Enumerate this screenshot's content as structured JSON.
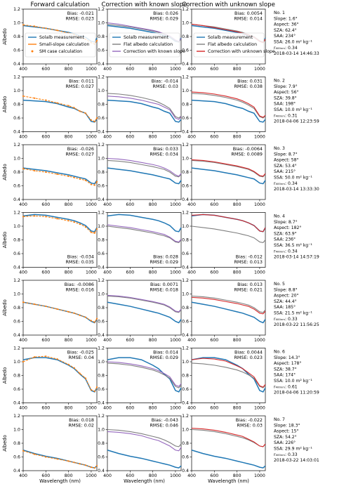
{
  "column_titles": [
    "Forward calculation",
    "Correction with known slope",
    "Correction with unknown slope"
  ],
  "axis": {
    "ylabel": "Albedo",
    "xlabel": "Wavelength (nm)",
    "xticks": [
      "400",
      "600",
      "800",
      "1000"
    ],
    "yticks": [
      "0.4",
      "0.6",
      "0.8",
      "1.0",
      "1.2"
    ]
  },
  "legends": [
    {
      "column": 0,
      "entries": [
        {
          "label": "Solalb measurement",
          "color": "#1f77b4",
          "style": "line"
        },
        {
          "label": "Small-slope calculation",
          "color": "#ff7f0e",
          "style": "line"
        },
        {
          "label": "SM case calculation",
          "color": "#ff7f0e",
          "style": "marker"
        }
      ]
    },
    {
      "column": 1,
      "entries": [
        {
          "label": "Solalb measurement",
          "color": "#1f77b4",
          "style": "line"
        },
        {
          "label": "Flat albedo calculation",
          "color": "#7f7f7f",
          "style": "line"
        },
        {
          "label": "Correction with known slope",
          "color": "#9467bd",
          "style": "line"
        }
      ]
    },
    {
      "column": 2,
      "entries": [
        {
          "label": "Solalb measurement",
          "color": "#1f77b4",
          "style": "line"
        },
        {
          "label": "Flat albedo calculation",
          "color": "#7f7f7f",
          "style": "line"
        },
        {
          "label": "Correction with unknown slope",
          "color": "#d62728",
          "style": "line"
        }
      ]
    }
  ],
  "cases": [
    {
      "info": [
        "No. 1",
        "Slope: 1.6°",
        "Aspect: 36°",
        "SZA: 62.4°",
        "SAA: 234°",
        "SSA: 26.0 m² kg⁻¹",
        "r₄₀₀ₙₘ: 0.34",
        "2018-03-14 14:46:33"
      ],
      "stats": [
        {
          "bias": "Bias: -0.021",
          "rmse": "RMSE: 0.023"
        },
        {
          "bias": "Bias: 0.026",
          "rmse": "RMSE: 0.029"
        },
        {
          "bias": "Bias: 0.0054",
          "rmse": "RMSE: 0.014"
        }
      ]
    },
    {
      "info": [
        "No. 2",
        "Slope: 7.9°",
        "Aspect: 56°",
        "SZA: 39.8°",
        "SAA: 198°",
        "SSA: 10.0 m² kg⁻¹",
        "r₄₀₀ₙₘ: 0.31",
        "2018-04-06 12:23:59"
      ],
      "stats": [
        {
          "bias": "Bias: 0.011",
          "rmse": "RMSE: 0.027"
        },
        {
          "bias": "Bias: -0.014",
          "rmse": "RMSE: 0.03"
        },
        {
          "bias": "Bias: 0.031",
          "rmse": "RMSE: 0.038"
        }
      ]
    },
    {
      "info": [
        "No. 3",
        "Slope: 8.7°",
        "Aspect: 58°",
        "SZA: 53.4°",
        "SAA: 215°",
        "SSA: 50.0 m² kg⁻¹",
        "r₄₀₀ₙₘ: 0.34",
        "2018-03-14 13:33:30"
      ],
      "stats": [
        {
          "bias": "Bias: -0.026",
          "rmse": "RMSE: 0.027"
        },
        {
          "bias": "Bias: 0.033",
          "rmse": "RMSE: 0.034"
        },
        {
          "bias": "Bias: -0.0064",
          "rmse": "RMSE: 0.0089"
        }
      ]
    },
    {
      "info": [
        "No. 4",
        "Slope: 8.7°",
        "Aspect: 182°",
        "SZA: 63.9°",
        "SAA: 236°",
        "SSA: 36.5 m² kg⁻¹",
        "r₄₀₀ₙₘ: 0.34",
        "2018-03-14 14:57:19"
      ],
      "stats": [
        {
          "bias": "Bias: -0.034",
          "rmse": "RMSE: 0.035"
        },
        {
          "bias": "Bias: 0.028",
          "rmse": "RMSE: 0.029"
        },
        {
          "bias": "Bias: -0.012",
          "rmse": "RMSE: 0.013"
        }
      ]
    },
    {
      "info": [
        "No. 5",
        "Slope: 8.8°",
        "Aspect: 20°",
        "SZA: 44.4°",
        "SAA: 185°",
        "SSA: 21.5 m² kg⁻¹",
        "r₄₀₀ₙₘ: 0.33",
        "2018-03-22 11:56:25"
      ],
      "stats": [
        {
          "bias": "Bias: -0.0086",
          "rmse": "RMSE: 0.016"
        },
        {
          "bias": "Bias: 0.0071",
          "rmse": "RMSE: 0.018"
        },
        {
          "bias": "Bias: 0.013",
          "rmse": "RMSE: 0.021"
        }
      ]
    },
    {
      "info": [
        "No. 6",
        "Slope: 14.3°",
        "Aspect: 178°",
        "SZA: 38.7°",
        "SAA: 174°",
        "SSA: 10.0 m² kg⁻¹",
        "r₄₀₀ₙₘ: 0.61",
        "2018-04-06 11:20:59"
      ],
      "stats": [
        {
          "bias": "Bias: -0.025",
          "rmse": "RMSE: 0.04"
        },
        {
          "bias": "Bias: 0.014",
          "rmse": "RMSE: 0.029"
        },
        {
          "bias": "Bias: 0.0044",
          "rmse": "RMSE: 0.023"
        }
      ]
    },
    {
      "info": [
        "No. 7",
        "Slope: 18.3°",
        "Aspect: 15°",
        "SZA: 54.2°",
        "SAA: 226°",
        "SSA: 29.9 m² kg⁻¹",
        "r₄₀₀ₙₘ: 0.33",
        "2018-03-22 14:03:01"
      ],
      "stats": [
        {
          "bias": "Bias: 0.018",
          "rmse": "RMSE: 0.02"
        },
        {
          "bias": "Bias: -0.043",
          "rmse": "RMSE: 0.046"
        },
        {
          "bias": "Bias: -0.022",
          "rmse": "RMSE: 0.03"
        }
      ]
    }
  ],
  "chart_data": {
    "type": "line",
    "layout": "7 rows x 3 columns of small multiples",
    "xlabel": "Wavelength (nm)",
    "ylabel": "Albedo",
    "xlim": [
      400,
      1050
    ],
    "ylim": [
      0.4,
      1.2
    ],
    "x": [
      400,
      500,
      600,
      700,
      800,
      850,
      900,
      950,
      1000,
      1030,
      1050
    ],
    "colors": {
      "measurement": "#1f77b4",
      "small_slope": "#ff7f0e",
      "flat": "#7f7f7f",
      "known": "#9467bd",
      "unknown": "#d62728"
    },
    "rows": [
      {
        "measurement": [
          0.96,
          0.94,
          0.92,
          0.89,
          0.86,
          0.84,
          0.81,
          0.79,
          0.73,
          0.72,
          0.78
        ],
        "small_slope": [
          0.97,
          0.95,
          0.92,
          0.89,
          0.85,
          0.83,
          0.79,
          0.76,
          0.71,
          0.69,
          0.74
        ],
        "flat": [
          0.98,
          0.96,
          0.94,
          0.91,
          0.88,
          0.86,
          0.83,
          0.8,
          0.74,
          0.72,
          0.77
        ],
        "known": [
          1.0,
          0.98,
          0.95,
          0.92,
          0.89,
          0.87,
          0.84,
          0.81,
          0.75,
          0.73,
          0.77
        ],
        "unknown": [
          0.98,
          0.96,
          0.93,
          0.9,
          0.87,
          0.85,
          0.82,
          0.79,
          0.73,
          0.71,
          0.76
        ]
      },
      {
        "measurement": [
          0.86,
          0.85,
          0.84,
          0.81,
          0.76,
          0.74,
          0.7,
          0.67,
          0.55,
          0.54,
          0.58
        ],
        "small_slope": [
          0.92,
          0.89,
          0.86,
          0.82,
          0.78,
          0.75,
          0.7,
          0.67,
          0.57,
          0.55,
          0.6
        ],
        "flat": [
          0.96,
          0.95,
          0.93,
          0.9,
          0.86,
          0.83,
          0.79,
          0.74,
          0.62,
          0.6,
          0.63
        ],
        "known": [
          0.92,
          0.91,
          0.89,
          0.86,
          0.82,
          0.8,
          0.76,
          0.72,
          0.6,
          0.58,
          0.62
        ],
        "unknown": [
          0.98,
          0.97,
          0.95,
          0.92,
          0.88,
          0.85,
          0.81,
          0.76,
          0.63,
          0.61,
          0.64
        ]
      },
      {
        "measurement": [
          0.86,
          0.84,
          0.82,
          0.79,
          0.76,
          0.74,
          0.72,
          0.7,
          0.64,
          0.63,
          0.68
        ],
        "small_slope": [
          0.85,
          0.82,
          0.8,
          0.77,
          0.74,
          0.72,
          0.7,
          0.68,
          0.62,
          0.61,
          0.66
        ],
        "flat": [
          0.97,
          0.96,
          0.94,
          0.91,
          0.88,
          0.86,
          0.84,
          0.8,
          0.74,
          0.73,
          0.77
        ],
        "known": [
          1.0,
          0.99,
          0.97,
          0.94,
          0.91,
          0.89,
          0.86,
          0.82,
          0.76,
          0.74,
          0.78
        ],
        "unknown": [
          0.98,
          0.97,
          0.95,
          0.92,
          0.89,
          0.87,
          0.85,
          0.81,
          0.75,
          0.74,
          0.78
        ]
      },
      {
        "measurement": [
          1.15,
          1.17,
          1.16,
          1.13,
          1.1,
          1.08,
          1.05,
          1.01,
          0.93,
          0.92,
          0.98
        ],
        "small_slope": [
          1.14,
          1.15,
          1.14,
          1.11,
          1.08,
          1.06,
          1.03,
          0.99,
          0.91,
          0.9,
          0.96
        ],
        "flat": [
          1.0,
          0.98,
          0.96,
          0.93,
          0.9,
          0.88,
          0.86,
          0.83,
          0.77,
          0.76,
          0.8
        ],
        "known": [
          1.02,
          1.0,
          0.98,
          0.95,
          0.92,
          0.9,
          0.88,
          0.84,
          0.78,
          0.77,
          0.81
        ],
        "unknown": [
          1.16,
          1.17,
          1.16,
          1.13,
          1.1,
          1.08,
          1.05,
          1.01,
          0.93,
          0.92,
          0.98
        ]
      },
      {
        "measurement": [
          0.88,
          0.85,
          0.82,
          0.78,
          0.74,
          0.72,
          0.69,
          0.66,
          0.6,
          0.58,
          0.63
        ],
        "small_slope": [
          0.88,
          0.85,
          0.82,
          0.78,
          0.74,
          0.72,
          0.69,
          0.66,
          0.61,
          0.59,
          0.64
        ],
        "flat": [
          0.97,
          0.96,
          0.94,
          0.91,
          0.88,
          0.86,
          0.84,
          0.8,
          0.74,
          0.73,
          0.77
        ],
        "known": [
          0.98,
          0.97,
          0.95,
          0.92,
          0.89,
          0.87,
          0.85,
          0.81,
          0.75,
          0.74,
          0.78
        ],
        "unknown": [
          0.95,
          0.94,
          0.92,
          0.89,
          0.86,
          0.84,
          0.82,
          0.78,
          0.72,
          0.71,
          0.75
        ]
      },
      {
        "measurement": [
          1.03,
          1.06,
          1.06,
          1.03,
          0.95,
          0.9,
          0.82,
          0.75,
          0.58,
          0.56,
          0.62
        ],
        "small_slope": [
          1.0,
          1.07,
          1.08,
          1.04,
          0.96,
          0.91,
          0.83,
          0.76,
          0.59,
          0.57,
          0.63
        ],
        "flat": [
          0.98,
          0.97,
          0.95,
          0.92,
          0.88,
          0.85,
          0.81,
          0.76,
          0.64,
          0.62,
          0.66
        ],
        "known": [
          1.0,
          0.99,
          0.97,
          0.94,
          0.9,
          0.87,
          0.83,
          0.78,
          0.66,
          0.64,
          0.68
        ],
        "unknown": [
          1.03,
          1.05,
          1.04,
          1.01,
          0.94,
          0.9,
          0.84,
          0.78,
          0.65,
          0.63,
          0.67
        ]
      },
      {
        "measurement": [
          0.7,
          0.65,
          0.61,
          0.58,
          0.54,
          0.52,
          0.5,
          0.48,
          0.45,
          0.44,
          0.47
        ],
        "small_slope": [
          0.69,
          0.64,
          0.6,
          0.57,
          0.54,
          0.52,
          0.5,
          0.48,
          0.45,
          0.44,
          0.47
        ],
        "flat": [
          1.0,
          0.99,
          0.97,
          0.94,
          0.9,
          0.88,
          0.85,
          0.81,
          0.76,
          0.75,
          0.79
        ],
        "known": [
          0.97,
          0.96,
          0.94,
          0.91,
          0.86,
          0.84,
          0.8,
          0.76,
          0.7,
          0.69,
          0.74
        ],
        "unknown": [
          1.02,
          1.01,
          0.99,
          0.96,
          0.92,
          0.9,
          0.86,
          0.82,
          0.76,
          0.75,
          0.79
        ]
      }
    ]
  }
}
